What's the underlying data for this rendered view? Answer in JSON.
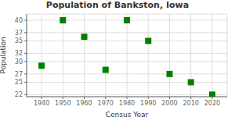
{
  "chart_data": {
    "type": "scatter",
    "title": "Population of Bankston, Iowa",
    "xlabel": "Census Year",
    "ylabel": "Population",
    "x": [
      1940,
      1950,
      1960,
      1970,
      1980,
      1990,
      2000,
      2010,
      2020
    ],
    "values": [
      29,
      40,
      36,
      28,
      40,
      35,
      27,
      25,
      22
    ],
    "color": "#008000",
    "marker": "square",
    "xlim": [
      1933,
      2027
    ],
    "ylim": [
      21.5,
      41.5
    ],
    "xticks": [
      1940,
      1950,
      1960,
      1970,
      1980,
      1990,
      2000,
      2010,
      2020
    ],
    "yticks": [
      22,
      25,
      27,
      30,
      32,
      35,
      37,
      40
    ],
    "grid": true
  }
}
